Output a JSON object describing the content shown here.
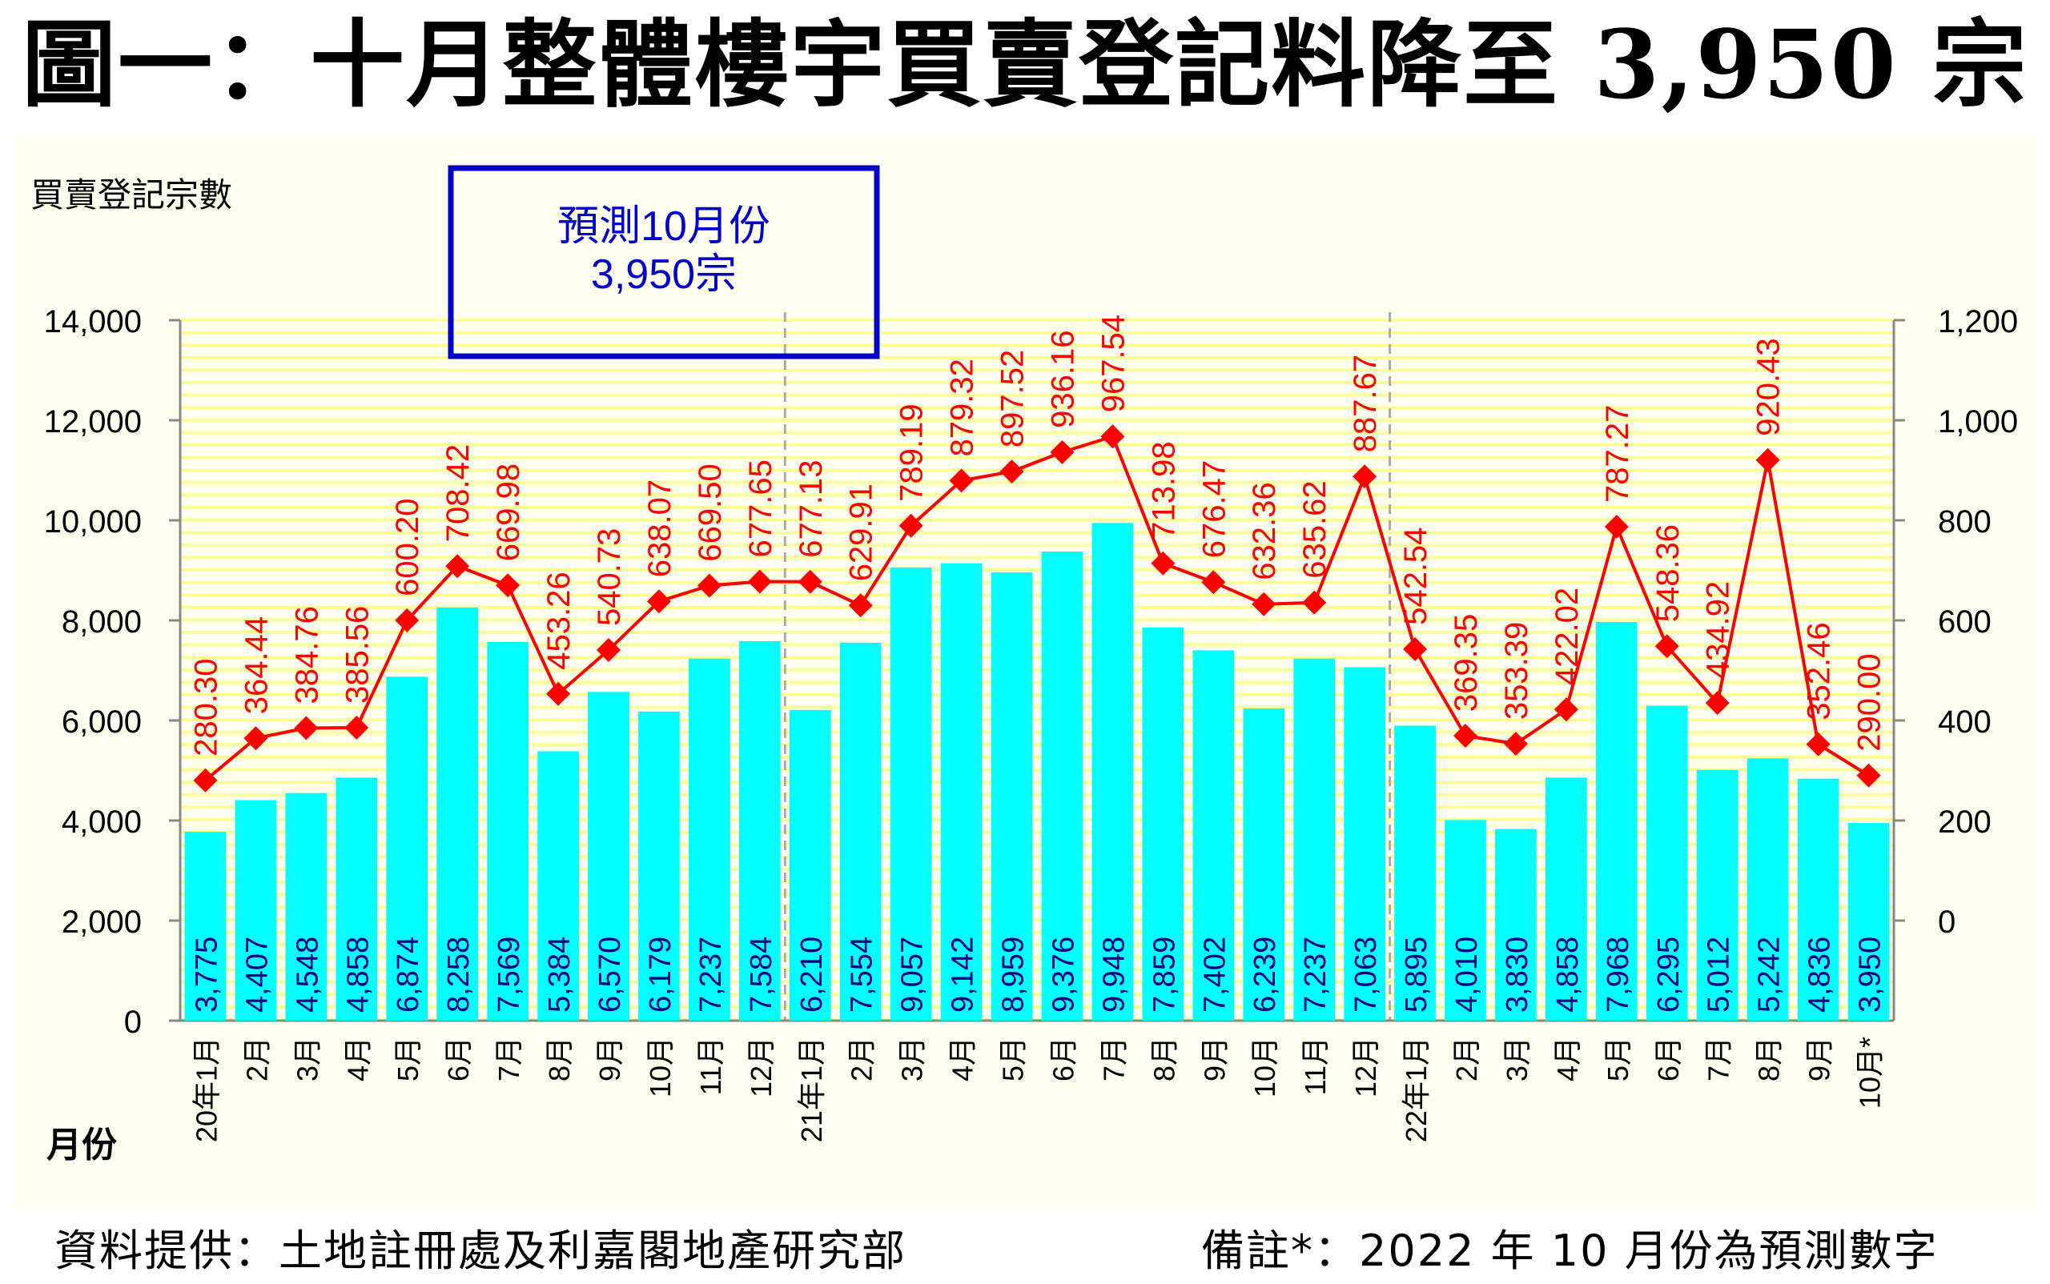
{
  "title": "圖一：十月整體樓宇買賣登記料降至 3,950 宗",
  "footer": {
    "source": "資料提供：土地註冊處及利嘉閣地產研究部",
    "note": "備註*：2022 年 10 月份為預測數字"
  },
  "colors": {
    "bar": "#00ffff",
    "line": "#ff0000",
    "bar_label": "#000080",
    "box_border": "#0000cc",
    "box_text": "#0000cc",
    "grid": "#ffff99",
    "panel": "#fffff0"
  },
  "chart_data": {
    "type": "bar",
    "ylabel": "買賣登記宗數",
    "xlabel": "月份",
    "ylim": [
      0,
      14000
    ],
    "yticks": [
      0,
      2000,
      4000,
      6000,
      8000,
      10000,
      12000,
      14000
    ],
    "ytick_labels": [
      "0",
      "2,000",
      "4,000",
      "6,000",
      "8,000",
      "10,000",
      "12,000",
      "14,000"
    ],
    "y2lim": [
      -200,
      1200
    ],
    "y2ticks": [
      0,
      200,
      400,
      600,
      800,
      1000,
      1200
    ],
    "y2tick_labels": [
      "0",
      "200",
      "400",
      "600",
      "800",
      "1,000",
      "1,200"
    ],
    "categories": [
      "20年1月",
      "2月",
      "3月",
      "4月",
      "5月",
      "6月",
      "7月",
      "8月",
      "9月",
      "10月",
      "11月",
      "12月",
      "21年1月",
      "2月",
      "3月",
      "4月",
      "5月",
      "6月",
      "7月",
      "8月",
      "9月",
      "10月",
      "11月",
      "12月",
      "22年1月",
      "2月",
      "3月",
      "4月",
      "5月",
      "6月",
      "7月",
      "8月",
      "9月",
      "10月*"
    ],
    "year_dividers_after": [
      11,
      23
    ],
    "grid": true,
    "series": [
      {
        "type": "bar",
        "axis": "left",
        "values": [
          3775,
          4407,
          4548,
          4858,
          6874,
          8258,
          7569,
          5384,
          6570,
          6179,
          7237,
          7584,
          6210,
          7554,
          9057,
          9142,
          8959,
          9376,
          9948,
          7859,
          7402,
          6239,
          7237,
          7063,
          5895,
          4010,
          3830,
          4858,
          7968,
          6295,
          5012,
          5242,
          4836,
          3950
        ],
        "labels": [
          "3,775",
          "4,407",
          "4,548",
          "4,858",
          "6,874",
          "8,258",
          "7,569",
          "5,384",
          "6,570",
          "6,179",
          "7,237",
          "7,584",
          "6,210",
          "7,554",
          "9,057",
          "9,142",
          "8,959",
          "9,376",
          "9,948",
          "7,859",
          "7,402",
          "6,239",
          "7,237",
          "7,063",
          "5,895",
          "4,010",
          "3,830",
          "4,858",
          "7,968",
          "6,295",
          "5,012",
          "5,242",
          "4,836",
          "3,950"
        ]
      },
      {
        "type": "line",
        "axis": "right",
        "values": [
          280.3,
          364.44,
          384.76,
          385.56,
          600.2,
          708.42,
          669.98,
          453.26,
          540.73,
          638.07,
          669.5,
          677.65,
          677.13,
          629.91,
          789.19,
          879.32,
          897.52,
          936.16,
          967.54,
          713.98,
          676.47,
          632.36,
          635.62,
          887.67,
          542.54,
          369.35,
          353.39,
          422.02,
          787.27,
          548.36,
          434.92,
          920.43,
          352.46,
          290.0
        ],
        "labels": [
          "280.30",
          "364.44",
          "384.76",
          "385.56",
          "600.20",
          "708.42",
          "669.98",
          "453.26",
          "540.73",
          "638.07",
          "669.50",
          "677.65",
          "677.13",
          "629.91",
          "789.19",
          "879.32",
          "897.52",
          "936.16",
          "967.54",
          "713.98",
          "676.47",
          "632.36",
          "635.62",
          "887.67",
          "542.54",
          "369.35",
          "353.39",
          "422.02",
          "787.27",
          "548.36",
          "434.92",
          "920.43",
          "352.46",
          "290.00"
        ]
      }
    ],
    "annotation": {
      "line1": "預測10月份",
      "line2": "3,950宗"
    }
  }
}
